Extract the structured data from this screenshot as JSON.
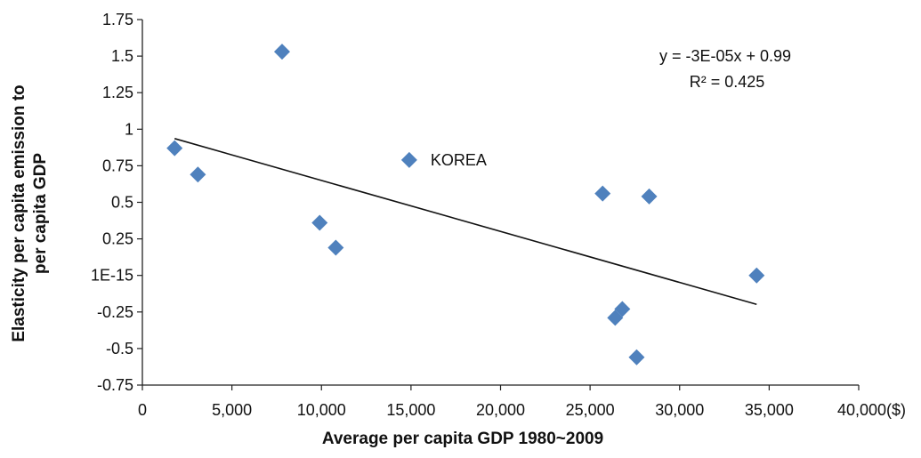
{
  "chart_data": {
    "type": "scatter",
    "title": "",
    "xlabel": "Average per capita GDP 1980~2009",
    "ylabel_lines": [
      "Elasticity per capita emission to",
      "per capita GDP"
    ],
    "xlim": [
      0,
      40000
    ],
    "ylim": [
      -0.75,
      1.75
    ],
    "x_ticks": [
      0,
      5000,
      10000,
      15000,
      20000,
      25000,
      30000,
      35000,
      40000
    ],
    "x_tick_labels": [
      "0",
      "5,000",
      "10,000",
      "15,000",
      "20,000",
      "25,000",
      "30,000",
      "35,000",
      "40,000($)"
    ],
    "y_ticks": [
      1.75,
      1.5,
      1.25,
      1,
      0.75,
      0.5,
      0.25,
      0,
      -0.25,
      -0.5,
      -0.75
    ],
    "y_tick_labels": [
      "1.75",
      "1.5",
      "1.25",
      "1",
      "0.75",
      "0.5",
      "0.25",
      "1E-15",
      "-0.25",
      "-0.5",
      "-0.75"
    ],
    "points": [
      {
        "x": 1800,
        "y": 0.87
      },
      {
        "x": 3100,
        "y": 0.69
      },
      {
        "x": 7800,
        "y": 1.53
      },
      {
        "x": 9900,
        "y": 0.36
      },
      {
        "x": 10800,
        "y": 0.19
      },
      {
        "x": 14900,
        "y": 0.79
      },
      {
        "x": 25700,
        "y": 0.56
      },
      {
        "x": 28300,
        "y": 0.54
      },
      {
        "x": 34300,
        "y": 0.0
      },
      {
        "x": 26400,
        "y": -0.29
      },
      {
        "x": 26800,
        "y": -0.23
      },
      {
        "x": 27600,
        "y": -0.56
      }
    ],
    "point_color": "#4F81BD",
    "trendline": {
      "x_start": 1800,
      "y_start": 0.936,
      "x_end": 34300,
      "y_end": -0.198,
      "color": "#111111"
    },
    "point_label": {
      "text": "KOREA",
      "x": 14900,
      "y": 0.79
    },
    "equation": "y = -3E-05x + 0.99",
    "r_squared": "R² = 0.425",
    "grid": false
  }
}
